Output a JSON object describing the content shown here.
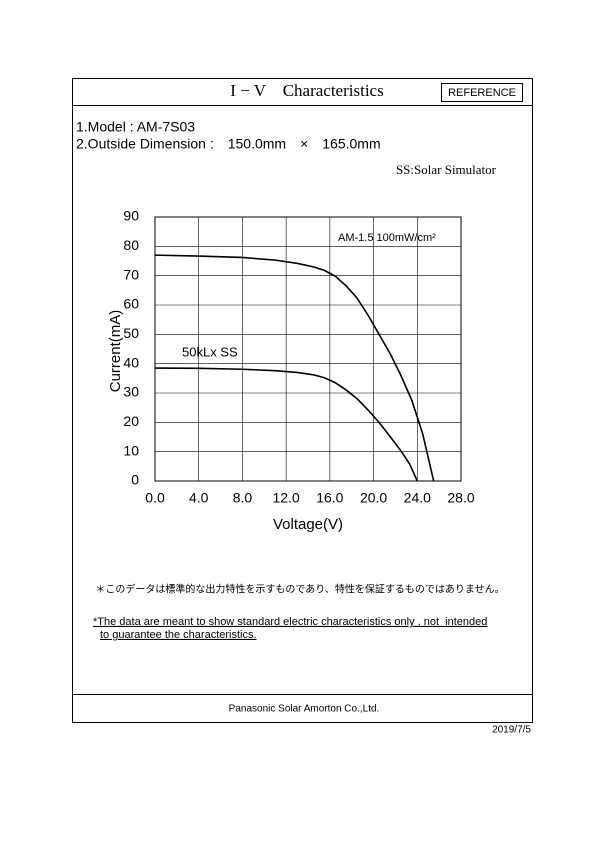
{
  "header": {
    "title": "I − V　Characteristics",
    "badge": "REFERENCE"
  },
  "specs": {
    "model": "1.Model : AM-7S03",
    "dimension": "2.Outside Dimension :　150.0mm　×　165.0mm",
    "condition": "SS:Solar Simulator"
  },
  "chart_data": {
    "type": "line",
    "x_label": "Voltage(V)",
    "y_label": "Current(mA)",
    "annotation": "AM-1.5 100mW/cm²",
    "xlim": [
      0,
      28
    ],
    "ylim": [
      0,
      90
    ],
    "xticks": [
      {
        "value": 0,
        "label": "0.0"
      },
      {
        "value": 4,
        "label": "4.0"
      },
      {
        "value": 8,
        "label": "8.0"
      },
      {
        "value": 12,
        "label": "12.0"
      },
      {
        "value": 16,
        "label": "16.0"
      },
      {
        "value": 20,
        "label": "20.0"
      },
      {
        "value": 24,
        "label": "24.0"
      },
      {
        "value": 28,
        "label": "28.0"
      }
    ],
    "yticks": [
      0,
      10,
      20,
      30,
      40,
      50,
      60,
      70,
      80,
      90
    ],
    "grid": true,
    "series": [
      {
        "color": "#000000",
        "x": [
          0,
          4,
          8,
          11,
          13,
          14.5,
          15.5,
          16.5,
          17.5,
          18.5,
          19.5,
          20.5,
          21.5,
          22.5,
          23.5,
          24.5,
          25.5
        ],
        "values": [
          77,
          76.7,
          76.2,
          75.3,
          74.2,
          73,
          71.8,
          69.8,
          66.5,
          62.3,
          56.5,
          50,
          43.5,
          36,
          27.5,
          16,
          0
        ]
      },
      {
        "name": "50kLx  SS",
        "color": "#000000",
        "x": [
          0,
          4,
          8,
          11,
          13,
          14.5,
          15.5,
          16.5,
          17.5,
          18.5,
          19.5,
          20.5,
          21.5,
          22.5,
          23.3,
          24
        ],
        "values": [
          38.5,
          38.4,
          38.1,
          37.6,
          37,
          36.2,
          35.2,
          33.5,
          31,
          28,
          24.2,
          20,
          15.2,
          10.3,
          5.8,
          0
        ]
      }
    ]
  },
  "notes": {
    "japanese": "＊このデータは標準的な出力特性を示すものであり、特性を保証するものではありません。",
    "english_line1": "*The data are meant to show standard electric characteristics only , not  intended",
    "english_line2": "to guarantee the characteristics."
  },
  "footer": {
    "company": "Panasonic Solar Amorton Co.,Ltd.",
    "date": "2019/7/5"
  }
}
